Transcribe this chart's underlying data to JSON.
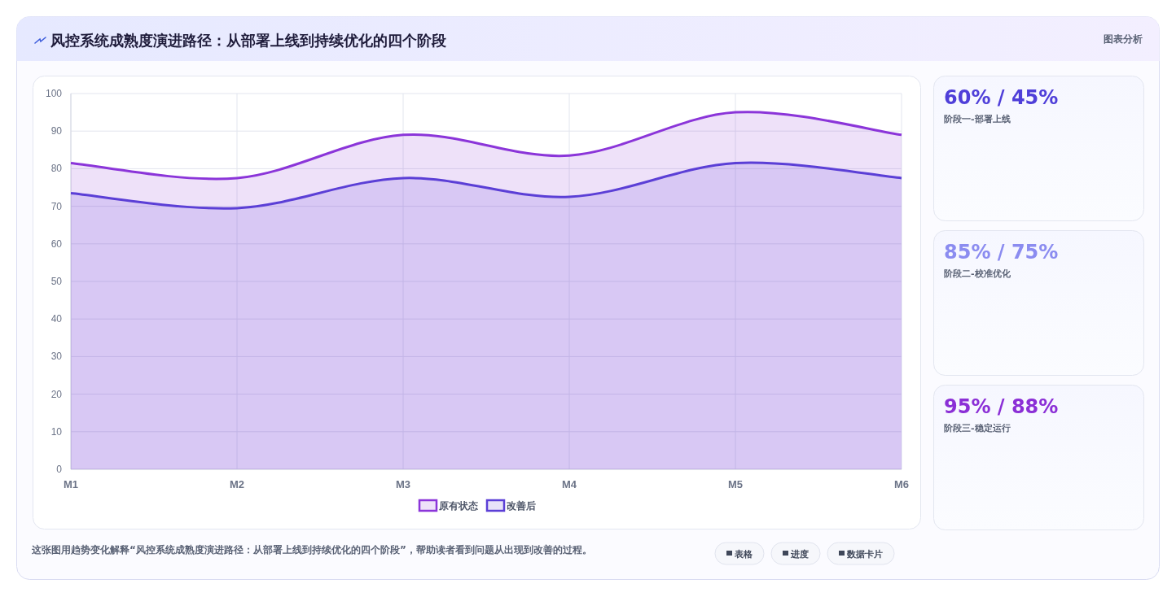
{
  "chart_data": [
    {
      "type": "area",
      "title": "风控系统成熟度演进路径：从部署上线到持续优化的四个阶段",
      "categories": [
        "M1",
        "M2",
        "M3",
        "M4",
        "M5",
        "M6"
      ],
      "series": [
        {
          "name": "原有状态",
          "color": "#8b35d9",
          "values": [
            81.5,
            77.5,
            89,
            83.5,
            95,
            89
          ]
        },
        {
          "name": "改善后",
          "color": "#5b3fd6",
          "values": [
            73.5,
            69.5,
            77.5,
            72.5,
            81.5,
            77.5
          ]
        }
      ],
      "ylim": [
        0,
        100
      ],
      "yticks": [
        0,
        10,
        20,
        30,
        40,
        50,
        60,
        70,
        80,
        90,
        100
      ],
      "grid": true,
      "legend": "bottom",
      "annotations": [
        "图表分析",
        "这张图用趋势变化解释“风控系统成熟度演进路径：从部署上线到持续优化的四个阶段”，帮助读者看到问题从出现到改善的过程。",
        "表格",
        "进度",
        "数据卡片"
      ]
    },
    {
      "type": "other",
      "annotations": [
        "60% / 45%",
        "阶段一-部署上线",
        "85% / 75%",
        "阶段二-校准优化",
        "95% / 88%",
        "阶段三-稳定运行"
      ],
      "colors": [
        "#4f3fd9",
        "#8b8cf0",
        "#8b2fd6"
      ]
    }
  ]
}
